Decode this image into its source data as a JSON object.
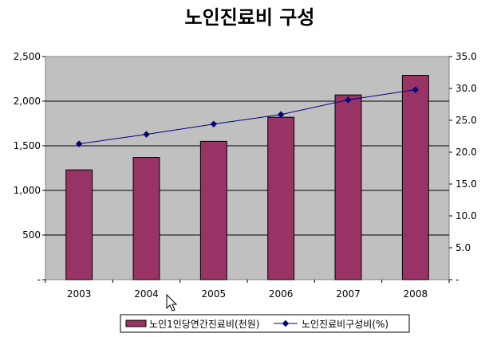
{
  "chart_data": {
    "type": "bar",
    "title": "노인진료비 구성",
    "categories": [
      "2003",
      "2004",
      "2005",
      "2006",
      "2007",
      "2008"
    ],
    "series": [
      {
        "name": "노인1인당연간진료비(천원)",
        "type": "bar",
        "axis": "left",
        "color": "#993366",
        "values": [
          1230,
          1370,
          1550,
          1820,
          2070,
          2290
        ]
      },
      {
        "name": "노인진료비구성비(%)",
        "type": "line",
        "axis": "right",
        "color": "#000080",
        "values": [
          21.3,
          22.8,
          24.4,
          25.9,
          28.2,
          29.8
        ]
      }
    ],
    "left_axis": {
      "ylim": [
        0,
        2500
      ],
      "ticks": [
        0,
        500,
        1000,
        1500,
        2000,
        2500
      ],
      "tick_labels": [
        "-",
        "500",
        "1,000",
        "1,500",
        "2,000",
        "2,500"
      ]
    },
    "right_axis": {
      "ylim": [
        0,
        35
      ],
      "ticks": [
        0,
        5,
        10,
        15,
        20,
        25,
        30,
        35
      ],
      "tick_labels": [
        "-",
        "5.0",
        "10.0",
        "15.0",
        "20.0",
        "25.0",
        "30.0",
        "35.0"
      ]
    },
    "grid": true,
    "plot_background": "#c0c0c0",
    "legend_position": "bottom"
  }
}
